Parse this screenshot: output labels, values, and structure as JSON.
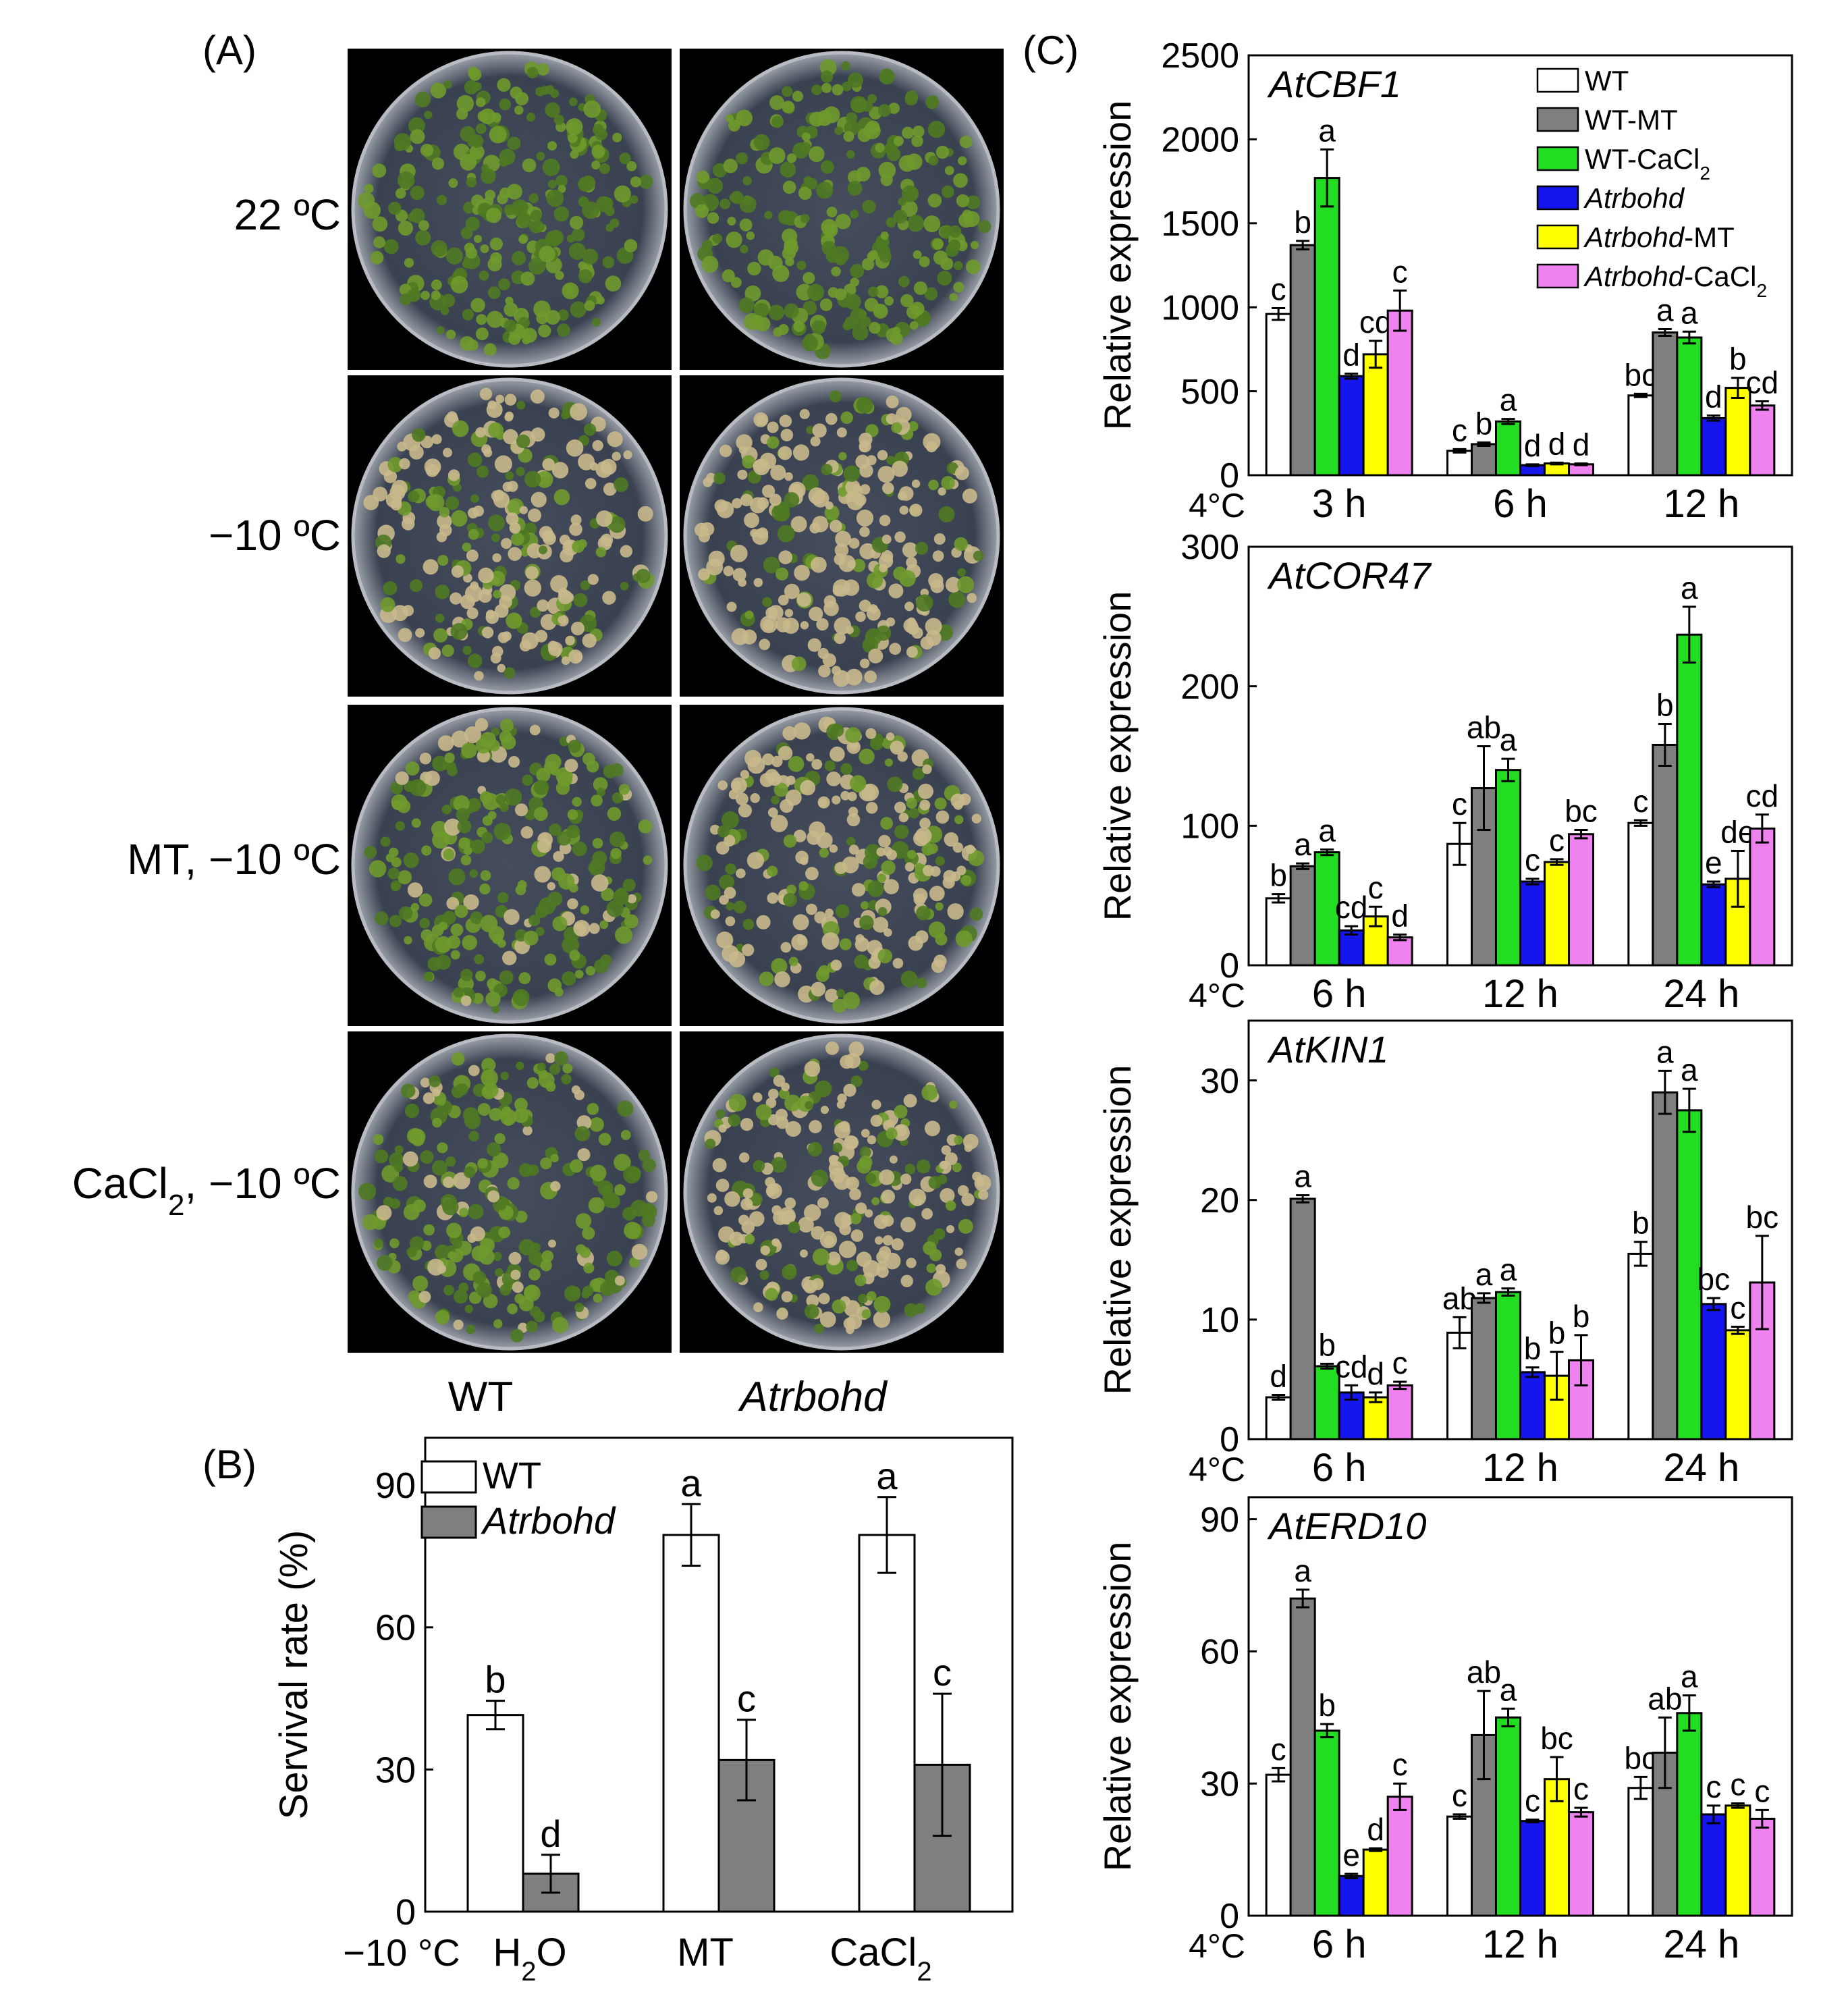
{
  "figure": {
    "panel_a": {
      "label": "(A)",
      "rows": [
        "22 ºC",
        "−10 ºC",
        "MT, −10 ºC",
        "CaCl2, −10 ºC"
      ],
      "columns": [
        "WT",
        "Atrbohd"
      ],
      "plate_health": [
        [
          1.0,
          1.0
        ],
        [
          0.45,
          0.25
        ],
        [
          0.8,
          0.4
        ],
        [
          0.85,
          0.35
        ]
      ],
      "colors": {
        "healthy": "#6f9a2c",
        "dead": "#c9b98c",
        "background": "#000000",
        "plate": "#3c4352"
      }
    },
    "panel_b": {
      "label": "(B)",
      "legend": [
        "WT",
        "Atrbohd"
      ],
      "x_prefix": "−10 °C",
      "categories": [
        "H2O",
        "MT",
        "CaCl2"
      ]
    },
    "panel_c": {
      "label": "(C)",
      "temp_label": "4°C",
      "legend": [
        "WT",
        "WT-MT",
        "WT-CaCl2",
        "Atrbohd",
        "Atrbohd-MT",
        "Atrbohd-CaCl2"
      ]
    }
  },
  "chart_data": [
    {
      "id": "B",
      "type": "bar",
      "title": "",
      "ylabel": "Servival rate (%)",
      "xlabel": "",
      "categories": [
        "H2O",
        "MT",
        "CaCl2"
      ],
      "ylim": [
        0,
        100
      ],
      "yticks": [
        0,
        30,
        60,
        90
      ],
      "series": [
        {
          "name": "WT",
          "color": "#ffffff",
          "values": [
            41.5,
            79.5,
            79.5
          ],
          "errors": [
            3.0,
            6.5,
            8.0
          ],
          "letters": [
            "b",
            "a",
            "a"
          ]
        },
        {
          "name": "Atrbohd",
          "color": "#7f7f7f",
          "values": [
            8.0,
            32.0,
            31.0
          ],
          "errors": [
            4.0,
            8.5,
            15.0
          ],
          "letters": [
            "d",
            "c",
            "c"
          ]
        }
      ]
    },
    {
      "id": "C1",
      "type": "bar",
      "title": "AtCBF1",
      "ylabel": "Relative expression",
      "categories": [
        "3 h",
        "6 h",
        "12 h"
      ],
      "ylim": [
        0,
        2500
      ],
      "yticks": [
        0,
        500,
        1000,
        1500,
        2000,
        2500
      ],
      "series": [
        {
          "name": "WT",
          "color": "#ffffff",
          "values": [
            960,
            145,
            475
          ],
          "errors": [
            35,
            10,
            10
          ],
          "letters": [
            "c",
            "c",
            "bc"
          ]
        },
        {
          "name": "WT-MT",
          "color": "#7f7f7f",
          "values": [
            1370,
            185,
            850
          ],
          "errors": [
            25,
            10,
            20
          ],
          "letters": [
            "b",
            "b",
            "a"
          ]
        },
        {
          "name": "WT-CaCl2",
          "color": "#22dd22",
          "values": [
            1770,
            320,
            820
          ],
          "errors": [
            170,
            15,
            35
          ],
          "letters": [
            "a",
            "a",
            "a"
          ]
        },
        {
          "name": "Atrbohd",
          "color": "#1515ee",
          "values": [
            590,
            60,
            340
          ],
          "errors": [
            15,
            5,
            15
          ],
          "letters": [
            "d",
            "d",
            "d"
          ]
        },
        {
          "name": "Atrbohd-MT",
          "color": "#ffff00",
          "values": [
            720,
            70,
            520
          ],
          "errors": [
            80,
            5,
            60
          ],
          "letters": [
            "cd",
            "d",
            "b"
          ]
        },
        {
          "name": "Atrbohd-CaCl2",
          "color": "#ee82ee",
          "values": [
            980,
            65,
            415
          ],
          "errors": [
            120,
            5,
            25
          ],
          "letters": [
            "c",
            "d",
            "cd"
          ]
        }
      ]
    },
    {
      "id": "C2",
      "type": "bar",
      "title": "AtCOR47",
      "ylabel": "Relative expression",
      "categories": [
        "6 h",
        "12 h",
        "24 h"
      ],
      "ylim": [
        0,
        300
      ],
      "yticks": [
        0,
        100,
        200,
        300
      ],
      "series": [
        {
          "name": "WT",
          "color": "#ffffff",
          "values": [
            48,
            87,
            102
          ],
          "errors": [
            3,
            15,
            2
          ],
          "letters": [
            "b",
            "c",
            "c"
          ]
        },
        {
          "name": "WT-MT",
          "color": "#7f7f7f",
          "values": [
            71,
            127,
            158
          ],
          "errors": [
            2,
            30,
            15
          ],
          "letters": [
            "a",
            "ab",
            "b"
          ]
        },
        {
          "name": "WT-CaCl2",
          "color": "#22dd22",
          "values": [
            81,
            140,
            237
          ],
          "errors": [
            2,
            8,
            20
          ],
          "letters": [
            "a",
            "a",
            "a"
          ]
        },
        {
          "name": "Atrbohd",
          "color": "#1515ee",
          "values": [
            25,
            60,
            58
          ],
          "errors": [
            3,
            2,
            2
          ],
          "letters": [
            "cd",
            "c",
            "e"
          ]
        },
        {
          "name": "Atrbohd-MT",
          "color": "#ffff00",
          "values": [
            35,
            74,
            62
          ],
          "errors": [
            7,
            2,
            20
          ],
          "letters": [
            "c",
            "c",
            "de"
          ]
        },
        {
          "name": "Atrbohd-CaCl2",
          "color": "#ee82ee",
          "values": [
            20,
            94,
            98
          ],
          "errors": [
            2,
            3,
            10
          ],
          "letters": [
            "d",
            "bc",
            "cd"
          ]
        }
      ]
    },
    {
      "id": "C3",
      "type": "bar",
      "title": "AtKIN1",
      "ylabel": "Relative expression",
      "categories": [
        "6 h",
        "12 h",
        "24 h"
      ],
      "ylim": [
        0,
        35
      ],
      "yticks": [
        0,
        10,
        20,
        30
      ],
      "series": [
        {
          "name": "WT",
          "color": "#ffffff",
          "values": [
            3.5,
            8.9,
            15.5
          ],
          "errors": [
            0.2,
            1.3,
            1.0
          ],
          "letters": [
            "d",
            "ab",
            "b"
          ]
        },
        {
          "name": "WT-MT",
          "color": "#7f7f7f",
          "values": [
            20.1,
            11.8,
            29.0
          ],
          "errors": [
            0.3,
            0.4,
            1.8
          ],
          "letters": [
            "a",
            "a",
            "a"
          ]
        },
        {
          "name": "WT-CaCl2",
          "color": "#22dd22",
          "values": [
            6.1,
            12.3,
            27.5
          ],
          "errors": [
            0.2,
            0.3,
            1.8
          ],
          "letters": [
            "b",
            "a",
            "a"
          ]
        },
        {
          "name": "Atrbohd",
          "color": "#1515ee",
          "values": [
            3.9,
            5.6,
            11.3
          ],
          "errors": [
            0.6,
            0.4,
            0.5
          ],
          "letters": [
            "cd",
            "b",
            "bc"
          ]
        },
        {
          "name": "Atrbohd-MT",
          "color": "#ffff00",
          "values": [
            3.5,
            5.3,
            9.1
          ],
          "errors": [
            0.4,
            2.0,
            0.3
          ],
          "letters": [
            "d",
            "b",
            "c"
          ]
        },
        {
          "name": "Atrbohd-CaCl2",
          "color": "#ee82ee",
          "values": [
            4.5,
            6.6,
            13.1
          ],
          "errors": [
            0.3,
            2.1,
            3.9
          ],
          "letters": [
            "c",
            "b",
            "bc"
          ]
        }
      ]
    },
    {
      "id": "C4",
      "type": "bar",
      "title": "AtERD10",
      "ylabel": "Relative expression",
      "categories": [
        "6 h",
        "12 h",
        "24 h"
      ],
      "ylim": [
        0,
        95
      ],
      "yticks": [
        0,
        30,
        60,
        90
      ],
      "series": [
        {
          "name": "WT",
          "color": "#ffffff",
          "values": [
            32,
            22.5,
            29
          ],
          "errors": [
            1.5,
            0.5,
            2.5
          ],
          "letters": [
            "c",
            "c",
            "bc"
          ]
        },
        {
          "name": "WT-MT",
          "color": "#7f7f7f",
          "values": [
            72,
            41,
            37
          ],
          "errors": [
            2,
            10,
            8
          ],
          "letters": [
            "a",
            "ab",
            "ab"
          ]
        },
        {
          "name": "WT-CaCl2",
          "color": "#22dd22",
          "values": [
            42,
            45,
            46
          ],
          "errors": [
            1.5,
            2,
            4
          ],
          "letters": [
            "b",
            "a",
            "a"
          ]
        },
        {
          "name": "Atrbohd",
          "color": "#1515ee",
          "values": [
            9,
            21.5,
            23
          ],
          "errors": [
            0.5,
            0.3,
            2
          ],
          "letters": [
            "e",
            "c",
            "c"
          ]
        },
        {
          "name": "Atrbohd-MT",
          "color": "#ffff00",
          "values": [
            15,
            31,
            25
          ],
          "errors": [
            0.3,
            5,
            0.5
          ],
          "letters": [
            "d",
            "bc",
            "c"
          ]
        },
        {
          "name": "Atrbohd-CaCl2",
          "color": "#ee82ee",
          "values": [
            27,
            23.5,
            22
          ],
          "errors": [
            3,
            1,
            2
          ],
          "letters": [
            "c",
            "c",
            "c"
          ]
        }
      ]
    }
  ]
}
